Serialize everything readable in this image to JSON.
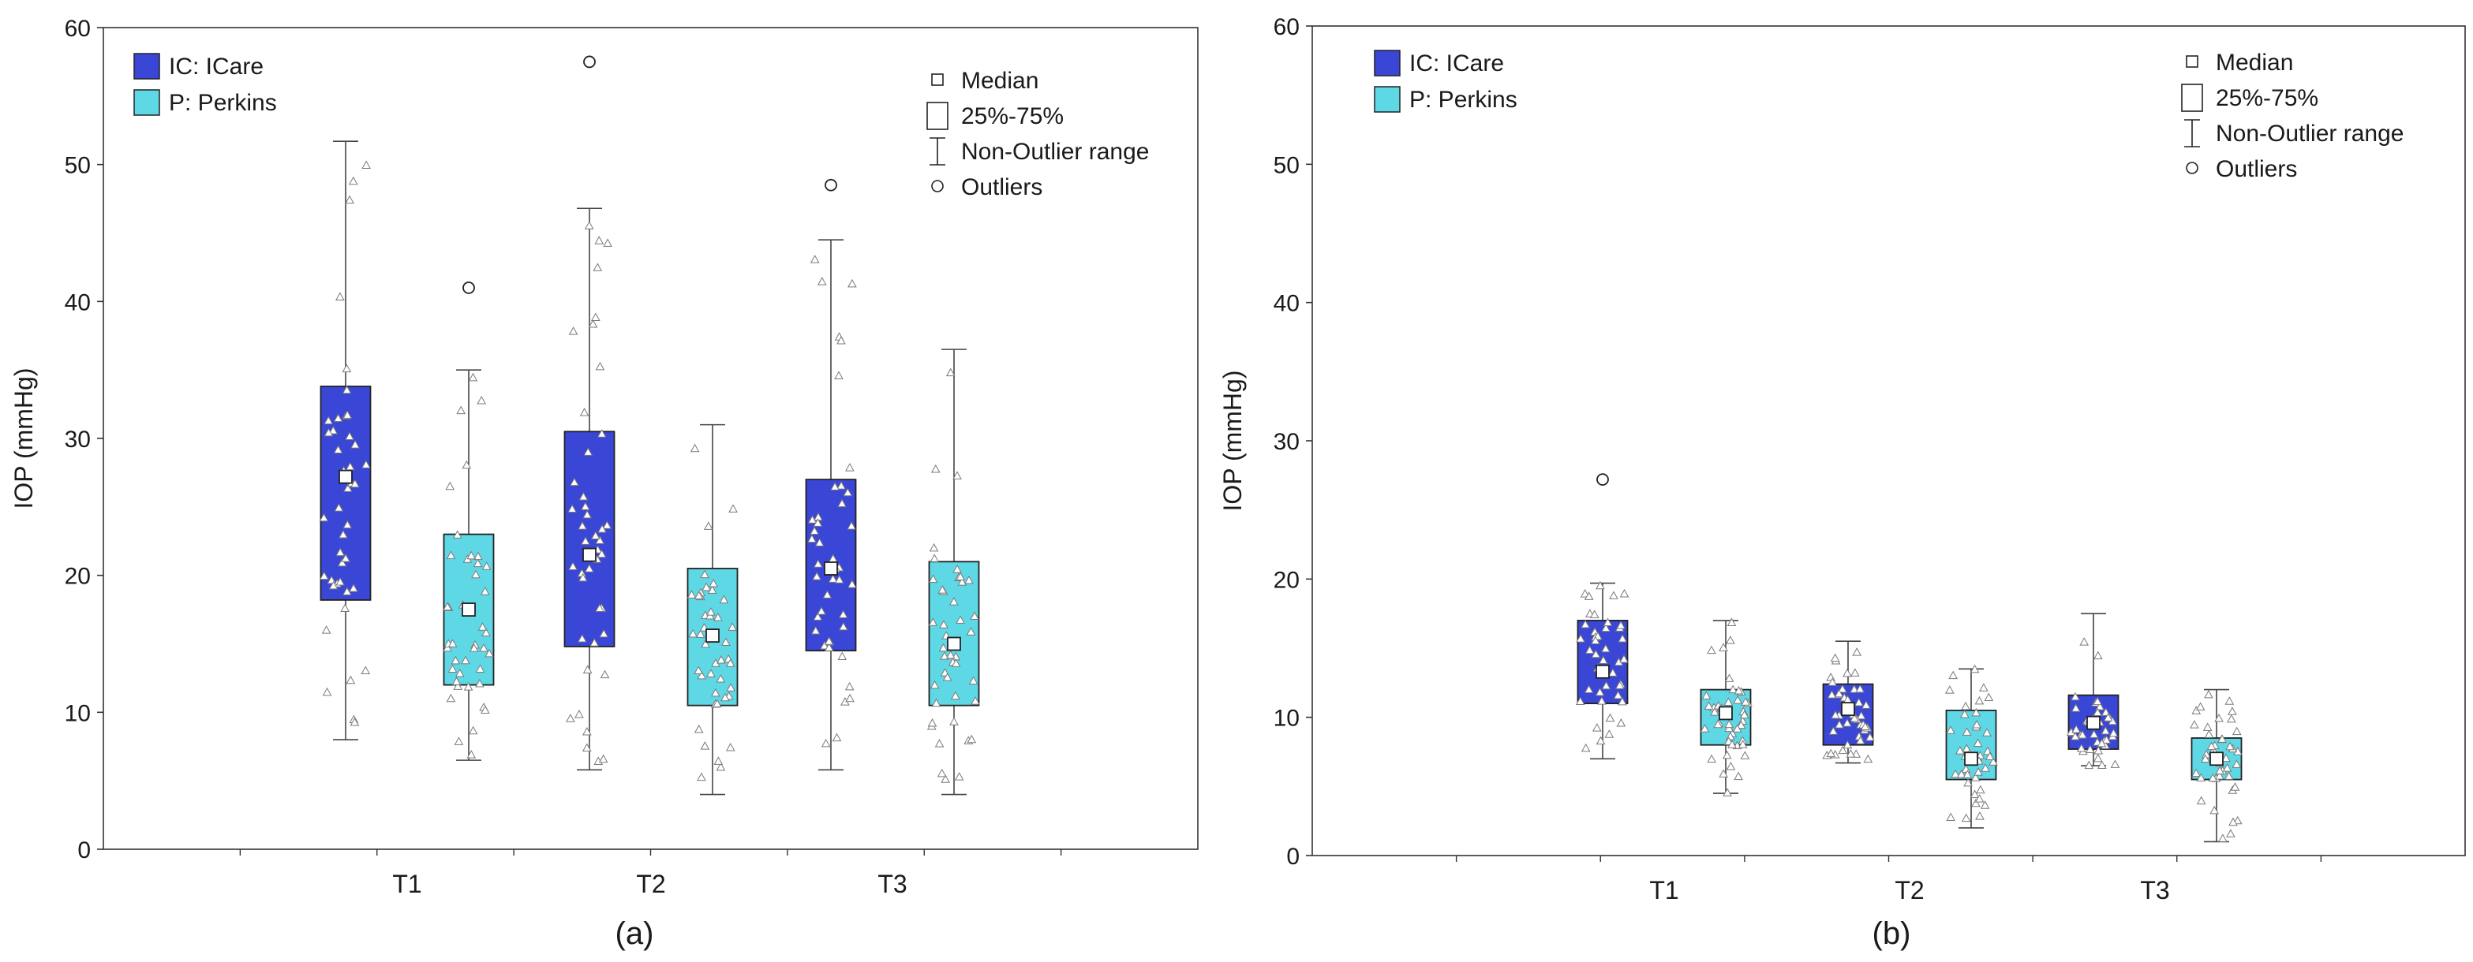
{
  "chart_data": [
    {
      "panel_label": "(a)",
      "type": "box",
      "ylabel": "IOP (mmHg)",
      "xlabel": "",
      "ylim": [
        0,
        60
      ],
      "yticks": [
        "0",
        "10",
        "20",
        "30",
        "40",
        "50",
        "60"
      ],
      "categories": [
        "T1",
        "T2",
        "T3"
      ],
      "legend_series": [
        {
          "name": "IC: ICare",
          "color": "#3a46d6"
        },
        {
          "name": "P: Perkins",
          "color": "#5fd8e6"
        }
      ],
      "legend_stats": {
        "median": "Median",
        "box": "25%-75%",
        "whisker": "Non-Outlier range",
        "outlier": "Outliers"
      },
      "boxes": [
        {
          "category": "T1",
          "series": "IC: ICare",
          "median": 27.2,
          "q1": 18.2,
          "q3": 33.8,
          "min": 8.0,
          "max": 51.7,
          "outliers": []
        },
        {
          "category": "T1",
          "series": "P: Perkins",
          "median": 17.5,
          "q1": 12.0,
          "q3": 23.0,
          "min": 6.5,
          "max": 35.0,
          "outliers": [
            41.0
          ]
        },
        {
          "category": "T2",
          "series": "IC: ICare",
          "median": 21.5,
          "q1": 14.8,
          "q3": 30.5,
          "min": 5.8,
          "max": 46.8,
          "outliers": [
            57.5
          ]
        },
        {
          "category": "T2",
          "series": "P: Perkins",
          "median": 15.6,
          "q1": 10.5,
          "q3": 20.5,
          "min": 4.0,
          "max": 31.0,
          "outliers": []
        },
        {
          "category": "T3",
          "series": "IC: ICare",
          "median": 20.5,
          "q1": 14.5,
          "q3": 27.0,
          "min": 5.8,
          "max": 44.5,
          "outliers": [
            48.5
          ]
        },
        {
          "category": "T3",
          "series": "P: Perkins",
          "median": 15.0,
          "q1": 10.5,
          "q3": 21.0,
          "min": 4.0,
          "max": 36.5,
          "outliers": []
        }
      ]
    },
    {
      "panel_label": "(b)",
      "type": "box",
      "ylabel": "IOP (mmHg)",
      "xlabel": "",
      "ylim": [
        0,
        60
      ],
      "yticks": [
        "0",
        "10",
        "20",
        "30",
        "40",
        "50",
        "60"
      ],
      "categories": [
        "T1",
        "T2",
        "T3"
      ],
      "legend_series": [
        {
          "name": "IC: ICare",
          "color": "#3a46d6"
        },
        {
          "name": "P: Perkins",
          "color": "#5fd8e6"
        }
      ],
      "legend_stats": {
        "median": "Median",
        "box": "25%-75%",
        "whisker": "Non-Outlier range",
        "outlier": "Outliers"
      },
      "boxes": [
        {
          "category": "T1",
          "series": "IC: ICare",
          "median": 13.3,
          "q1": 11.0,
          "q3": 17.0,
          "min": 7.0,
          "max": 19.7,
          "outliers": [
            27.2
          ]
        },
        {
          "category": "T1",
          "series": "P: Perkins",
          "median": 10.3,
          "q1": 8.0,
          "q3": 12.0,
          "min": 4.5,
          "max": 17.0,
          "outliers": []
        },
        {
          "category": "T2",
          "series": "IC: ICare",
          "median": 10.6,
          "q1": 8.0,
          "q3": 12.4,
          "min": 6.7,
          "max": 15.5,
          "outliers": []
        },
        {
          "category": "T2",
          "series": "P: Perkins",
          "median": 7.0,
          "q1": 5.5,
          "q3": 10.5,
          "min": 2.0,
          "max": 13.5,
          "outliers": []
        },
        {
          "category": "T3",
          "series": "IC: ICare",
          "median": 9.6,
          "q1": 7.7,
          "q3": 11.6,
          "min": 6.5,
          "max": 17.5,
          "outliers": []
        },
        {
          "category": "T3",
          "series": "P: Perkins",
          "median": 7.0,
          "q1": 5.5,
          "q3": 8.5,
          "min": 1.0,
          "max": 12.0,
          "outliers": []
        }
      ]
    }
  ]
}
